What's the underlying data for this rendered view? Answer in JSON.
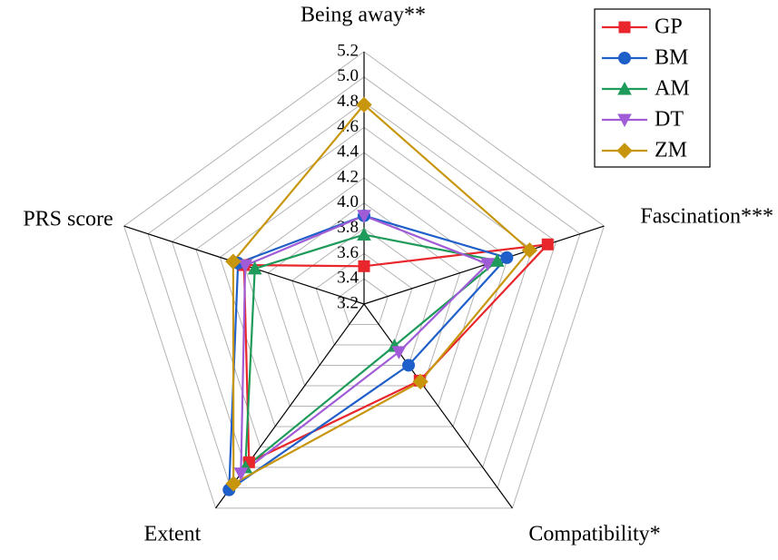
{
  "chart_data": {
    "type": "radar",
    "axes": [
      "Being away**",
      "Fascination***",
      "Compatibility*",
      "Extent",
      "PRS score"
    ],
    "rlim": [
      3.2,
      5.2
    ],
    "rticks": [
      3.2,
      3.4,
      3.6,
      3.8,
      {
        "value": 4,
        "label": "4.0"
      },
      4.2,
      4.4,
      4.6,
      4.8,
      {
        "value": 5,
        "label": "5.0"
      },
      5.2
    ],
    "grid": true,
    "legend": "upper right",
    "series": [
      {
        "name": "GP",
        "color": "#e8262b",
        "marker": "square",
        "values": [
          3.5,
          4.73,
          3.95,
          4.75,
          4.2
        ]
      },
      {
        "name": "BM",
        "color": "#1f5fc9",
        "marker": "circle",
        "values": [
          3.9,
          4.39,
          3.8,
          5.02,
          4.25
        ]
      },
      {
        "name": "AM",
        "color": "#1e9a5a",
        "marker": "triangle",
        "values": [
          3.75,
          4.31,
          3.61,
          4.8,
          4.11
        ]
      },
      {
        "name": "DT",
        "color": "#a05cd6",
        "marker": "triangle-down",
        "values": [
          3.9,
          4.23,
          3.67,
          4.86,
          4.19
        ]
      },
      {
        "name": "ZM",
        "color": "#c8960c",
        "marker": "diamond",
        "values": [
          4.78,
          4.58,
          3.96,
          4.96,
          4.29
        ]
      }
    ]
  }
}
